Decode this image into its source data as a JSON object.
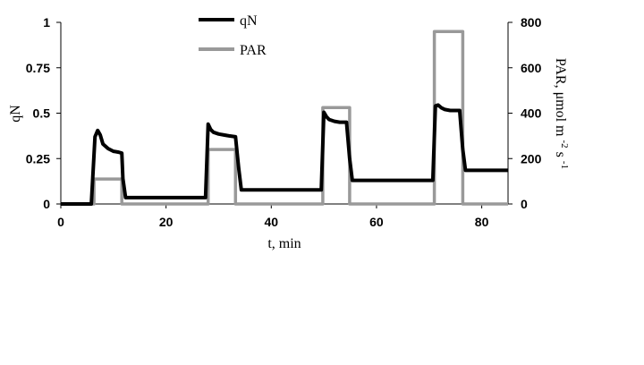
{
  "chart_data": {
    "type": "line",
    "xlabel": "t, min",
    "ylabel_left": "qN",
    "ylabel_right_main": "PAR, μmol  m",
    "ylabel_right_exp1": "-2",
    "ylabel_right_mid": " s",
    "ylabel_right_exp2": "-1",
    "xlim": [
      0,
      85
    ],
    "ylim_left": [
      0,
      1
    ],
    "ylim_right": [
      0,
      800
    ],
    "x_ticks": [
      0,
      20,
      40,
      60,
      80
    ],
    "x_tick_labels": [
      "0",
      "20",
      "40",
      "60",
      "80"
    ],
    "y_left_ticks": [
      0,
      0.25,
      0.5,
      0.75,
      1
    ],
    "y_left_tick_labels": [
      "0",
      "0.25",
      "0.5",
      "0.75",
      "1"
    ],
    "y_right_ticks": [
      0,
      200,
      400,
      600,
      800
    ],
    "y_right_tick_labels": [
      "0",
      "200",
      "400",
      "600",
      "800"
    ],
    "grid": false,
    "legend_position": "top-center",
    "series": [
      {
        "name": "qN",
        "axis": "left",
        "color": "#000000",
        "x": [
          0,
          5.8,
          6.5,
          7.0,
          7.5,
          8.0,
          9.0,
          10.0,
          11.0,
          11.6,
          11.8,
          12.3,
          27.5,
          28.0,
          28.5,
          29.0,
          30.0,
          31.0,
          32.0,
          33.2,
          33.8,
          34.3,
          49.5,
          50.0,
          50.5,
          51.0,
          52.0,
          53.0,
          54.3,
          54.9,
          55.4,
          70.7,
          71.2,
          71.7,
          72.3,
          73.0,
          74.0,
          75.0,
          75.8,
          76.4,
          76.9,
          85
        ],
        "y": [
          0,
          0,
          0.37,
          0.405,
          0.38,
          0.33,
          0.305,
          0.29,
          0.285,
          0.28,
          0.14,
          0.035,
          0.035,
          0.44,
          0.41,
          0.395,
          0.385,
          0.38,
          0.375,
          0.37,
          0.2,
          0.078,
          0.078,
          0.505,
          0.48,
          0.465,
          0.455,
          0.45,
          0.45,
          0.25,
          0.13,
          0.13,
          0.54,
          0.545,
          0.53,
          0.52,
          0.515,
          0.515,
          0.515,
          0.3,
          0.185,
          0.185
        ]
      },
      {
        "name": "PAR",
        "axis": "right",
        "color": "#999999",
        "x": [
          0,
          6.3,
          6.3,
          11.6,
          11.6,
          28.0,
          28.0,
          33.2,
          33.2,
          49.8,
          49.8,
          54.9,
          54.9,
          71.0,
          71.0,
          76.4,
          76.4,
          85
        ],
        "y": [
          0,
          0,
          110,
          110,
          0,
          0,
          240,
          240,
          0,
          0,
          425,
          425,
          0,
          0,
          760,
          760,
          0,
          0
        ]
      }
    ]
  }
}
